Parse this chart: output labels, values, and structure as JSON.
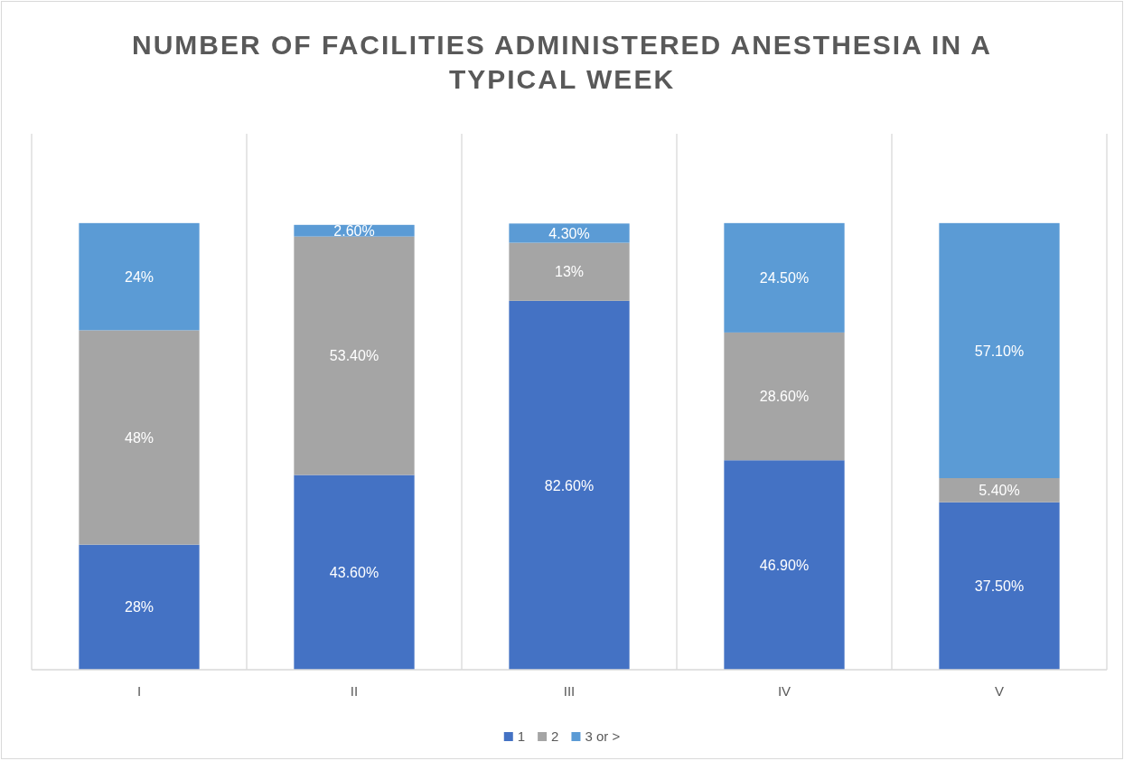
{
  "chart_data": {
    "type": "bar",
    "stacked": true,
    "title": "NUMBER OF FACILITIES ADMINISTERED ANESTHESIA IN A TYPICAL WEEK",
    "categories": [
      "I",
      "II",
      "III",
      "IV",
      "V"
    ],
    "series": [
      {
        "name": "1",
        "color": "#4472c4",
        "values": [
          28,
          43.6,
          82.6,
          46.9,
          37.5
        ],
        "value_labels": [
          "28%",
          "43.60%",
          "82.60%",
          "46.90%",
          "37.50%"
        ]
      },
      {
        "name": "2",
        "color": "#a5a5a5",
        "values": [
          48,
          53.4,
          13,
          28.6,
          5.4
        ],
        "value_labels": [
          "48%",
          "53.40%",
          "13%",
          "28.60%",
          "5.40%"
        ]
      },
      {
        "name": "3 or >",
        "color": "#5b9bd5",
        "values": [
          24,
          2.6,
          4.3,
          24.5,
          57.1
        ],
        "value_labels": [
          "24%",
          "2.60%",
          "4.30%",
          "24.50%",
          "57.10%"
        ]
      }
    ],
    "grid": "x",
    "legend": "bottom"
  }
}
